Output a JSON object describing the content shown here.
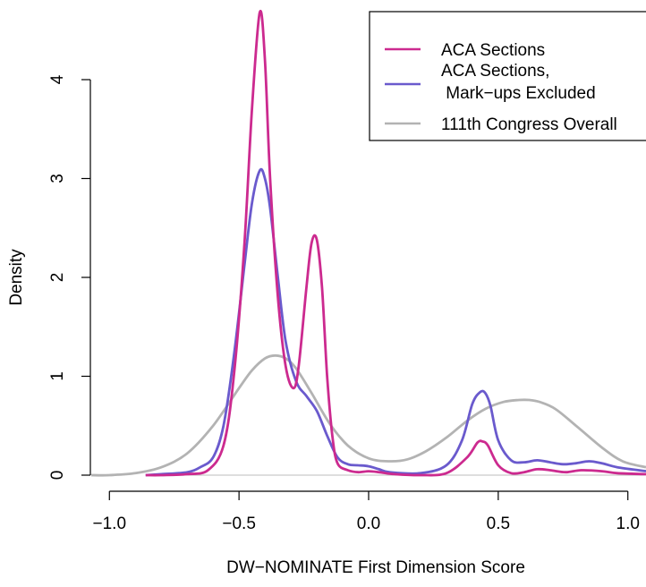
{
  "chart_data": {
    "type": "line",
    "title": "",
    "xlabel": "DW−NOMINATE First Dimension Score",
    "ylabel": "Density",
    "xlim": [
      -1.07,
      1.07
    ],
    "ylim": [
      -0.05,
      4.8
    ],
    "x_ticks": [
      -1.0,
      -0.5,
      0.0,
      0.5,
      1.0
    ],
    "x_tick_labels": [
      "−1.0",
      "−0.5",
      "0.0",
      "0.5",
      "1.0"
    ],
    "y_ticks": [
      0,
      1,
      2,
      3,
      4
    ],
    "y_tick_labels": [
      "0",
      "1",
      "2",
      "3",
      "4"
    ],
    "grid": false,
    "baseline_y": 0,
    "legend": {
      "position": "top-right",
      "entries": [
        {
          "text": "ACA Sections",
          "series": "aca"
        },
        {
          "text": "ACA Sections,",
          "text2": " Mark−ups Excluded",
          "series": "aca_nomarkup"
        },
        {
          "text": "111th Congress Overall",
          "series": "congress"
        }
      ]
    },
    "series": [
      {
        "id": "aca",
        "name": "ACA Sections",
        "color": "#cc2a8f",
        "x": [
          -0.86,
          -0.8,
          -0.7,
          -0.62,
          -0.56,
          -0.52,
          -0.48,
          -0.45,
          -0.42,
          -0.4,
          -0.38,
          -0.35,
          -0.32,
          -0.29,
          -0.27,
          -0.24,
          -0.22,
          -0.2,
          -0.18,
          -0.16,
          -0.14,
          -0.12,
          -0.08,
          -0.04,
          0.0,
          0.04,
          0.1,
          0.2,
          0.3,
          0.38,
          0.42,
          0.44,
          0.46,
          0.5,
          0.55,
          0.6,
          0.65,
          0.7,
          0.76,
          0.82,
          0.9,
          0.96,
          1.07
        ],
        "y": [
          0.0,
          0.0,
          0.01,
          0.05,
          0.3,
          1.0,
          2.3,
          3.7,
          4.68,
          4.2,
          3.0,
          1.8,
          1.1,
          0.88,
          1.1,
          1.9,
          2.35,
          2.38,
          1.9,
          1.0,
          0.4,
          0.12,
          0.05,
          0.03,
          0.04,
          0.03,
          0.01,
          0.0,
          0.02,
          0.18,
          0.33,
          0.34,
          0.3,
          0.1,
          0.02,
          0.03,
          0.06,
          0.05,
          0.03,
          0.05,
          0.04,
          0.02,
          0.01
        ]
      },
      {
        "id": "aca_nomarkup",
        "name": "ACA Sections,  Mark−ups Excluded",
        "color": "#6a5acd",
        "x": [
          -0.86,
          -0.8,
          -0.7,
          -0.65,
          -0.6,
          -0.56,
          -0.52,
          -0.48,
          -0.45,
          -0.42,
          -0.4,
          -0.38,
          -0.35,
          -0.32,
          -0.28,
          -0.24,
          -0.2,
          -0.16,
          -0.12,
          -0.08,
          -0.04,
          0.0,
          0.04,
          0.08,
          0.2,
          0.3,
          0.36,
          0.4,
          0.43,
          0.45,
          0.47,
          0.5,
          0.55,
          0.6,
          0.65,
          0.7,
          0.75,
          0.8,
          0.85,
          0.9,
          0.96,
          1.07
        ],
        "y": [
          0.0,
          0.01,
          0.03,
          0.08,
          0.18,
          0.5,
          1.2,
          2.1,
          2.75,
          3.08,
          3.0,
          2.7,
          2.0,
          1.35,
          0.95,
          0.8,
          0.65,
          0.4,
          0.18,
          0.11,
          0.1,
          0.09,
          0.06,
          0.03,
          0.02,
          0.1,
          0.35,
          0.72,
          0.84,
          0.83,
          0.7,
          0.35,
          0.15,
          0.13,
          0.15,
          0.13,
          0.11,
          0.12,
          0.14,
          0.12,
          0.08,
          0.04
        ]
      },
      {
        "id": "congress",
        "name": "111th Congress Overall",
        "color": "#b3b3b3",
        "x": [
          -1.07,
          -1.0,
          -0.9,
          -0.8,
          -0.7,
          -0.6,
          -0.5,
          -0.45,
          -0.4,
          -0.36,
          -0.32,
          -0.28,
          -0.22,
          -0.15,
          -0.08,
          0.0,
          0.08,
          0.15,
          0.22,
          0.3,
          0.38,
          0.45,
          0.52,
          0.58,
          0.62,
          0.66,
          0.72,
          0.8,
          0.9,
          0.98,
          1.07
        ],
        "y": [
          0.0,
          0.0,
          0.02,
          0.08,
          0.22,
          0.5,
          0.88,
          1.06,
          1.18,
          1.21,
          1.18,
          1.08,
          0.83,
          0.52,
          0.3,
          0.17,
          0.14,
          0.16,
          0.24,
          0.38,
          0.55,
          0.67,
          0.74,
          0.76,
          0.76,
          0.74,
          0.67,
          0.5,
          0.28,
          0.14,
          0.08
        ]
      }
    ]
  }
}
